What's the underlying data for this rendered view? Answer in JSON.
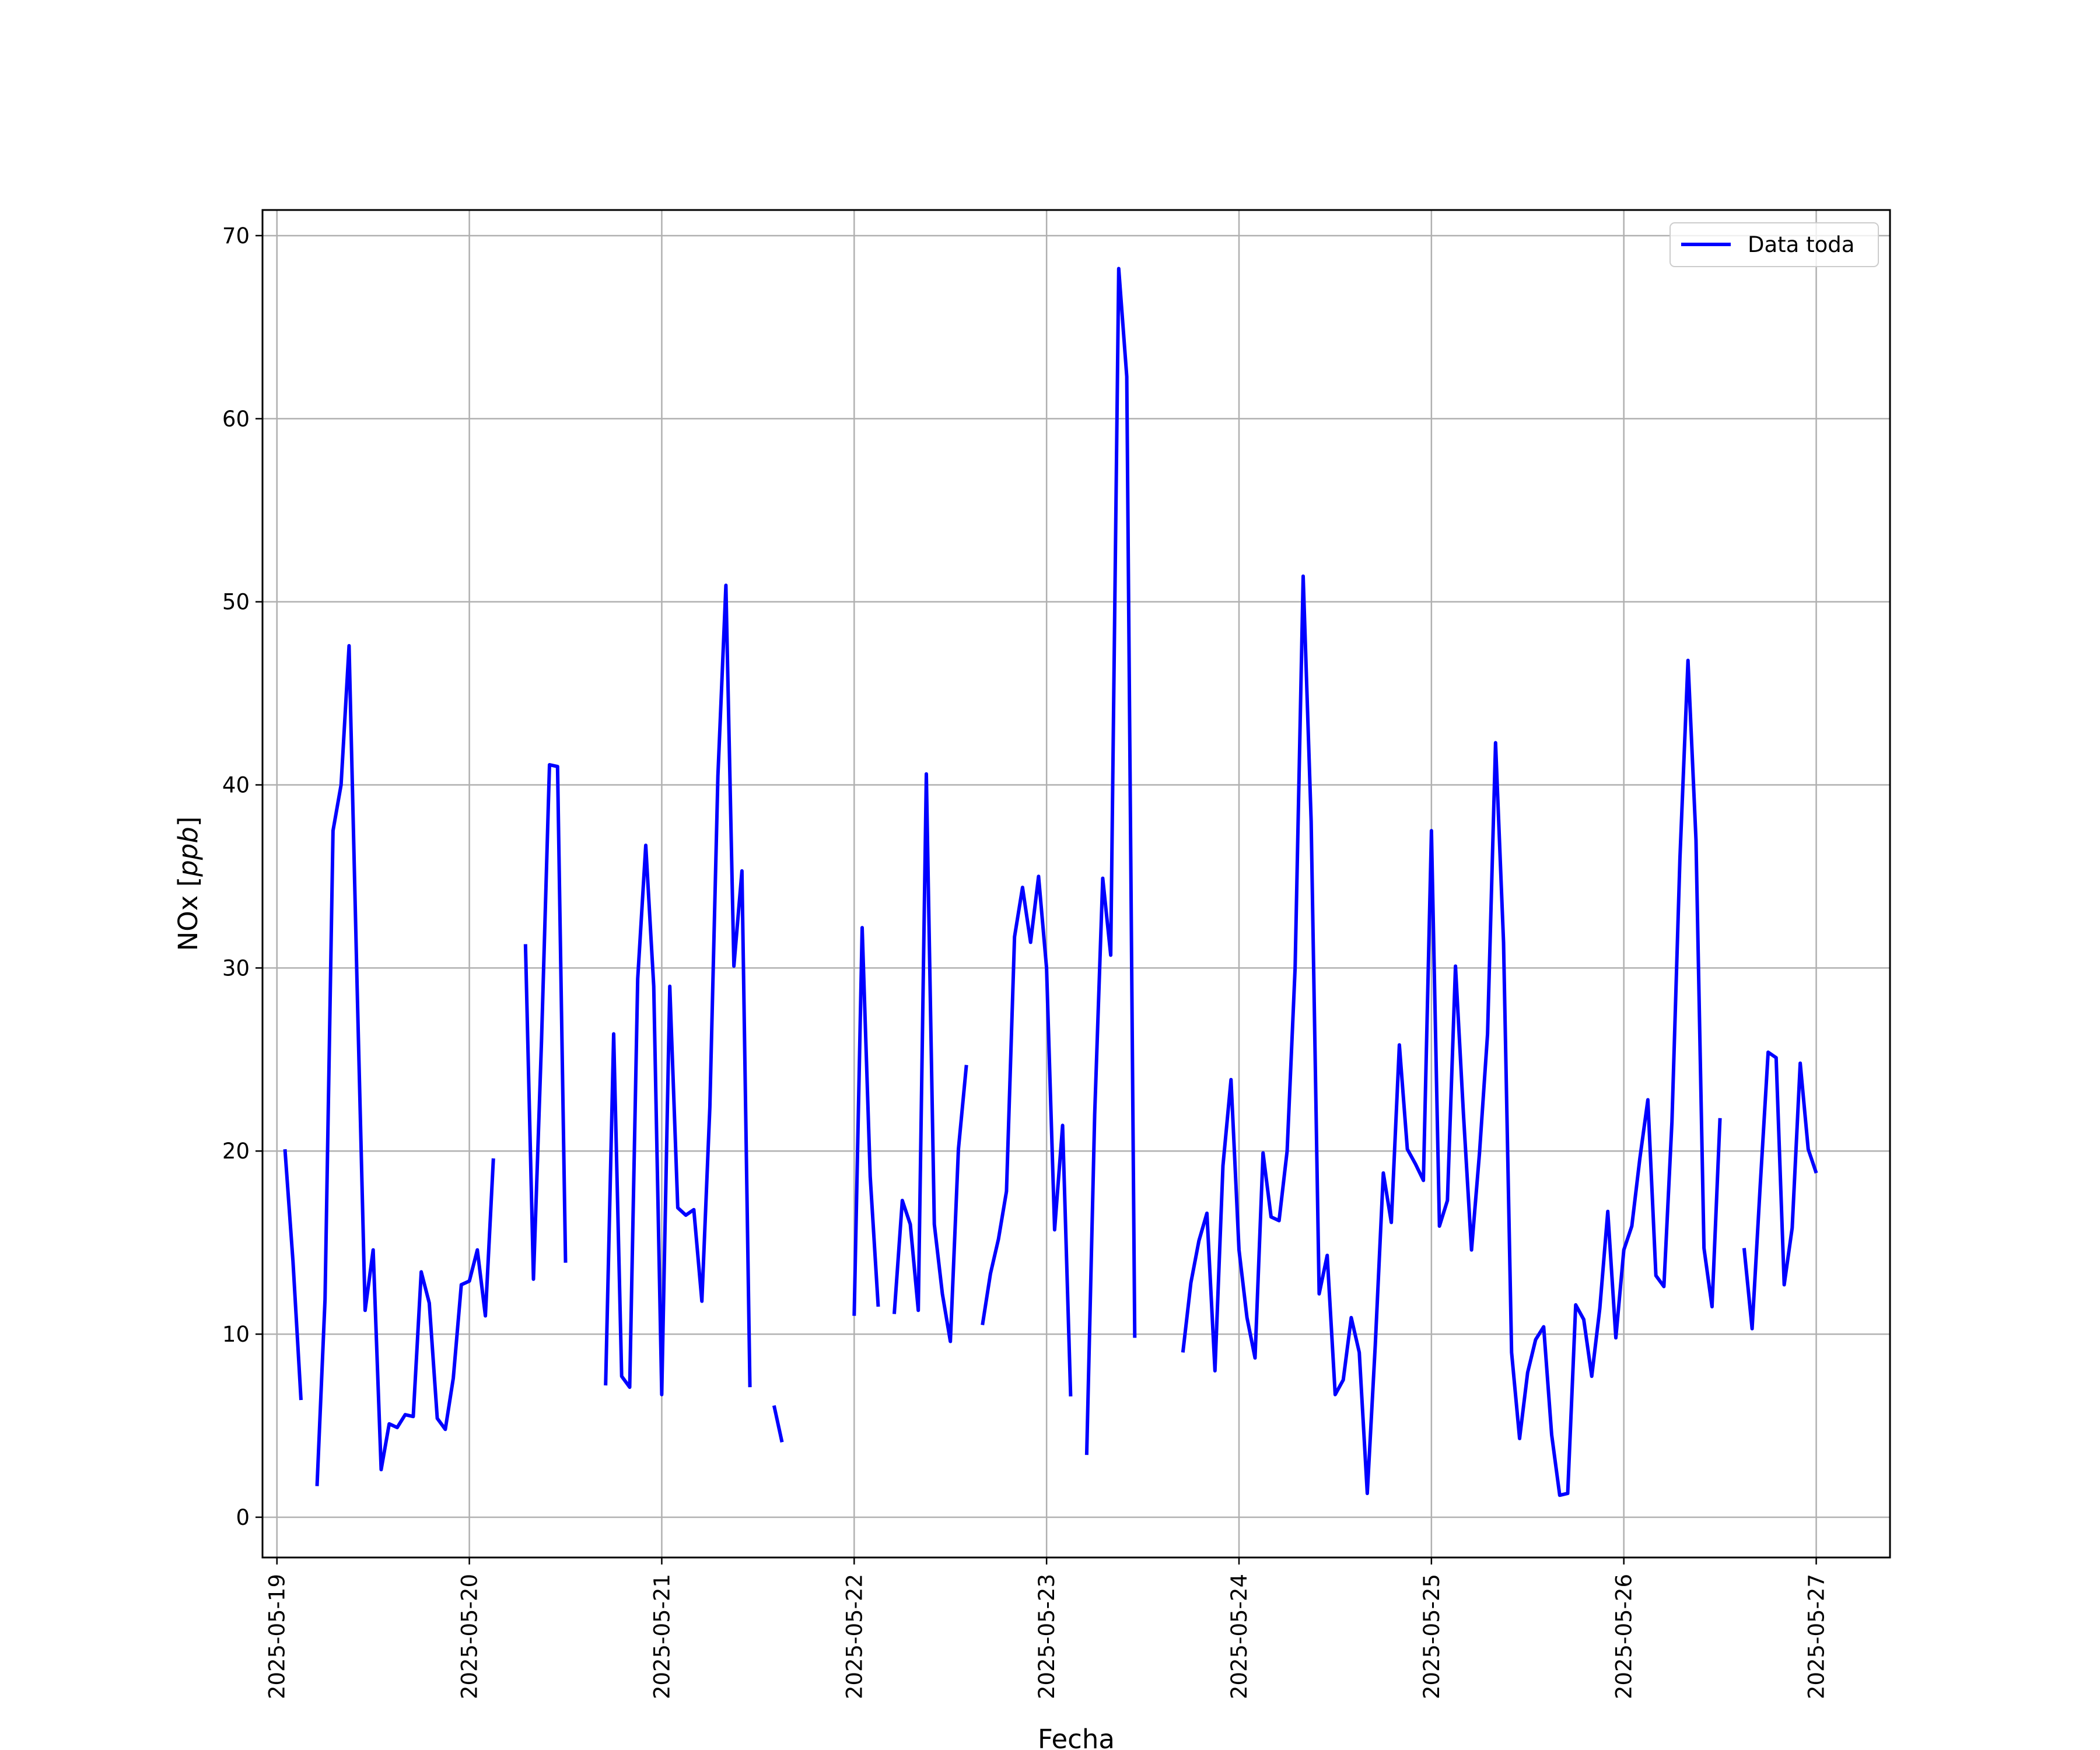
{
  "chart_data": {
    "type": "line",
    "title": "",
    "xlabel": "Fecha",
    "ylabel": "NOx",
    "ylabel_unit": "ppb",
    "x_type": "datetime",
    "xlim": [
      "2025-05-18T22:12:00",
      "2025-05-27T09:12:00"
    ],
    "ylim": [
      -2.2,
      71.4
    ],
    "xticks": [
      "2025-05-19",
      "2025-05-20",
      "2025-05-21",
      "2025-05-22",
      "2025-05-23",
      "2025-05-24",
      "2025-05-25",
      "2025-05-26",
      "2025-05-27"
    ],
    "yticks": [
      "0",
      "10",
      "20",
      "30",
      "40",
      "50",
      "60",
      "70"
    ],
    "grid": true,
    "legend_position": "top-right",
    "colors": {
      "series": "#0000ff",
      "grid": "#b0b0b0",
      "frame": "#000000"
    },
    "series": [
      {
        "name": "Data toda",
        "color": "#0000ff",
        "points": [
          [
            "2025-05-19T01:00",
            20.1
          ],
          [
            "2025-05-19T02:00",
            14.0
          ],
          [
            "2025-05-19T03:00",
            6.4
          ],
          [
            "2025-05-19T04:00",
            null
          ],
          [
            "2025-05-19T05:00",
            1.7
          ],
          [
            "2025-05-19T06:00",
            11.9
          ],
          [
            "2025-05-19T07:00",
            37.5
          ],
          [
            "2025-05-19T08:00",
            40.0
          ],
          [
            "2025-05-19T09:00",
            47.6
          ],
          [
            "2025-05-19T10:00",
            29.0
          ],
          [
            "2025-05-19T11:00",
            11.3
          ],
          [
            "2025-05-19T12:00",
            14.6
          ],
          [
            "2025-05-19T13:00",
            2.6
          ],
          [
            "2025-05-19T14:00",
            5.1
          ],
          [
            "2025-05-19T15:00",
            4.9
          ],
          [
            "2025-05-19T16:00",
            5.6
          ],
          [
            "2025-05-19T17:00",
            5.5
          ],
          [
            "2025-05-19T18:00",
            13.4
          ],
          [
            "2025-05-19T19:00",
            11.7
          ],
          [
            "2025-05-19T20:00",
            5.4
          ],
          [
            "2025-05-19T21:00",
            4.8
          ],
          [
            "2025-05-19T22:00",
            7.6
          ],
          [
            "2025-05-19T23:00",
            12.7
          ],
          [
            "2025-05-20T00:00",
            12.9
          ],
          [
            "2025-05-20T01:00",
            14.6
          ],
          [
            "2025-05-20T02:00",
            11.0
          ],
          [
            "2025-05-20T03:00",
            19.6
          ],
          [
            "2025-05-20T04:00",
            null
          ],
          [
            "2025-05-20T07:00",
            31.3
          ],
          [
            "2025-05-20T08:00",
            13.0
          ],
          [
            "2025-05-20T09:00",
            26.0
          ],
          [
            "2025-05-20T10:00",
            41.1
          ],
          [
            "2025-05-20T11:00",
            41.0
          ],
          [
            "2025-05-20T12:00",
            13.9
          ],
          [
            "2025-05-20T13:00",
            null
          ],
          [
            "2025-05-20T17:00",
            7.2
          ],
          [
            "2025-05-20T18:00",
            26.4
          ],
          [
            "2025-05-20T19:00",
            7.7
          ],
          [
            "2025-05-20T20:00",
            7.1
          ],
          [
            "2025-05-20T21:00",
            29.4
          ],
          [
            "2025-05-20T22:00",
            36.7
          ],
          [
            "2025-05-20T23:00",
            29.0
          ],
          [
            "2025-05-21T00:00",
            6.7
          ],
          [
            "2025-05-21T01:00",
            29.0
          ],
          [
            "2025-05-21T02:00",
            16.9
          ],
          [
            "2025-05-21T03:00",
            16.5
          ],
          [
            "2025-05-21T04:00",
            16.8
          ],
          [
            "2025-05-21T05:00",
            11.8
          ],
          [
            "2025-05-21T06:00",
            22.4
          ],
          [
            "2025-05-21T07:00",
            40.5
          ],
          [
            "2025-05-21T08:00",
            50.9
          ],
          [
            "2025-05-21T09:00",
            30.1
          ],
          [
            "2025-05-21T10:00",
            35.3
          ],
          [
            "2025-05-21T11:00",
            7.1
          ],
          [
            "2025-05-21T12:00",
            null
          ],
          [
            "2025-05-21T14:00",
            6.1
          ],
          [
            "2025-05-21T15:00",
            4.1
          ],
          [
            "2025-05-21T16:00",
            null
          ],
          [
            "2025-05-22T00:00",
            11.0
          ],
          [
            "2025-05-22T01:00",
            32.2
          ],
          [
            "2025-05-22T02:00",
            18.6
          ],
          [
            "2025-05-22T03:00",
            11.5
          ],
          [
            "2025-05-22T04:00",
            null
          ],
          [
            "2025-05-22T05:00",
            11.1
          ],
          [
            "2025-05-22T06:00",
            17.3
          ],
          [
            "2025-05-22T07:00",
            16.0
          ],
          [
            "2025-05-22T08:00",
            11.3
          ],
          [
            "2025-05-22T09:00",
            40.6
          ],
          [
            "2025-05-22T10:00",
            16.0
          ],
          [
            "2025-05-22T11:00",
            12.2
          ],
          [
            "2025-05-22T12:00",
            9.6
          ],
          [
            "2025-05-22T13:00",
            20.1
          ],
          [
            "2025-05-22T14:00",
            24.7
          ],
          [
            "2025-05-22T15:00",
            null
          ],
          [
            "2025-05-22T16:00",
            10.5
          ],
          [
            "2025-05-22T17:00",
            13.3
          ],
          [
            "2025-05-22T18:00",
            15.2
          ],
          [
            "2025-05-22T19:00",
            17.8
          ],
          [
            "2025-05-22T20:00",
            31.7
          ],
          [
            "2025-05-22T21:00",
            34.4
          ],
          [
            "2025-05-22T22:00",
            31.4
          ],
          [
            "2025-05-22T23:00",
            35.0
          ],
          [
            "2025-05-23T00:00",
            30.0
          ],
          [
            "2025-05-23T01:00",
            15.7
          ],
          [
            "2025-05-23T02:00",
            21.4
          ],
          [
            "2025-05-23T03:00",
            6.6
          ],
          [
            "2025-05-23T04:00",
            null
          ],
          [
            "2025-05-23T05:00",
            3.4
          ],
          [
            "2025-05-23T06:00",
            22.0
          ],
          [
            "2025-05-23T07:00",
            34.9
          ],
          [
            "2025-05-23T08:00",
            30.7
          ],
          [
            "2025-05-23T09:00",
            68.2
          ],
          [
            "2025-05-23T10:00",
            62.3
          ],
          [
            "2025-05-23T11:00",
            9.8
          ],
          [
            "2025-05-23T12:00",
            null
          ],
          [
            "2025-05-23T17:00",
            9.0
          ],
          [
            "2025-05-23T18:00",
            12.8
          ],
          [
            "2025-05-23T19:00",
            15.1
          ],
          [
            "2025-05-23T20:00",
            16.6
          ],
          [
            "2025-05-23T21:00",
            8.0
          ],
          [
            "2025-05-23T22:00",
            19.2
          ],
          [
            "2025-05-23T23:00",
            23.9
          ],
          [
            "2025-05-24T00:00",
            14.6
          ],
          [
            "2025-05-24T01:00",
            10.9
          ],
          [
            "2025-05-24T02:00",
            8.7
          ],
          [
            "2025-05-24T03:00",
            19.9
          ],
          [
            "2025-05-24T04:00",
            16.4
          ],
          [
            "2025-05-24T05:00",
            16.2
          ],
          [
            "2025-05-24T06:00",
            20.0
          ],
          [
            "2025-05-24T07:00",
            30.0
          ],
          [
            "2025-05-24T08:00",
            51.4
          ],
          [
            "2025-05-24T09:00",
            38.0
          ],
          [
            "2025-05-24T10:00",
            12.2
          ],
          [
            "2025-05-24T11:00",
            14.3
          ],
          [
            "2025-05-24T12:00",
            6.7
          ],
          [
            "2025-05-24T13:00",
            7.5
          ],
          [
            "2025-05-24T14:00",
            10.9
          ],
          [
            "2025-05-24T15:00",
            9.0
          ],
          [
            "2025-05-24T16:00",
            1.3
          ],
          [
            "2025-05-24T17:00",
            9.4
          ],
          [
            "2025-05-24T18:00",
            18.8
          ],
          [
            "2025-05-24T19:00",
            16.1
          ],
          [
            "2025-05-24T20:00",
            25.8
          ],
          [
            "2025-05-24T21:00",
            20.1
          ],
          [
            "2025-05-24T22:00",
            19.3
          ],
          [
            "2025-05-24T23:00",
            18.4
          ],
          [
            "2025-05-25T00:00",
            37.5
          ],
          [
            "2025-05-25T01:00",
            15.9
          ],
          [
            "2025-05-25T02:00",
            17.3
          ],
          [
            "2025-05-25T03:00",
            30.1
          ],
          [
            "2025-05-25T04:00",
            22.0
          ],
          [
            "2025-05-25T05:00",
            14.6
          ],
          [
            "2025-05-25T06:00",
            19.9
          ],
          [
            "2025-05-25T07:00",
            26.4
          ],
          [
            "2025-05-25T08:00",
            42.3
          ],
          [
            "2025-05-25T09:00",
            31.4
          ],
          [
            "2025-05-25T10:00",
            9.0
          ],
          [
            "2025-05-25T11:00",
            4.3
          ],
          [
            "2025-05-25T12:00",
            7.9
          ],
          [
            "2025-05-25T13:00",
            9.7
          ],
          [
            "2025-05-25T14:00",
            10.4
          ],
          [
            "2025-05-25T15:00",
            4.5
          ],
          [
            "2025-05-25T16:00",
            1.2
          ],
          [
            "2025-05-25T17:00",
            1.3
          ],
          [
            "2025-05-25T18:00",
            11.6
          ],
          [
            "2025-05-25T19:00",
            10.8
          ],
          [
            "2025-05-25T20:00",
            7.7
          ],
          [
            "2025-05-25T21:00",
            11.4
          ],
          [
            "2025-05-25T22:00",
            16.7
          ],
          [
            "2025-05-25T23:00",
            9.8
          ],
          [
            "2025-05-26T00:00",
            14.6
          ],
          [
            "2025-05-26T01:00",
            15.9
          ],
          [
            "2025-05-26T02:00",
            19.6
          ],
          [
            "2025-05-26T03:00",
            22.8
          ],
          [
            "2025-05-26T04:00",
            13.2
          ],
          [
            "2025-05-26T05:00",
            12.6
          ],
          [
            "2025-05-26T06:00",
            21.6
          ],
          [
            "2025-05-26T07:00",
            36.0
          ],
          [
            "2025-05-26T08:00",
            46.8
          ],
          [
            "2025-05-26T09:00",
            37.0
          ],
          [
            "2025-05-26T10:00",
            14.7
          ],
          [
            "2025-05-26T11:00",
            11.5
          ],
          [
            "2025-05-26T12:00",
            21.8
          ],
          [
            "2025-05-26T13:00",
            null
          ],
          [
            "2025-05-26T15:00",
            14.7
          ],
          [
            "2025-05-26T16:00",
            10.3
          ],
          [
            "2025-05-26T17:00",
            18.0
          ],
          [
            "2025-05-26T18:00",
            25.4
          ],
          [
            "2025-05-26T19:00",
            25.1
          ],
          [
            "2025-05-26T20:00",
            12.7
          ],
          [
            "2025-05-26T21:00",
            15.8
          ],
          [
            "2025-05-26T22:00",
            24.8
          ],
          [
            "2025-05-26T23:00",
            20.1
          ],
          [
            "2025-05-27T00:00",
            18.8
          ]
        ]
      }
    ]
  }
}
